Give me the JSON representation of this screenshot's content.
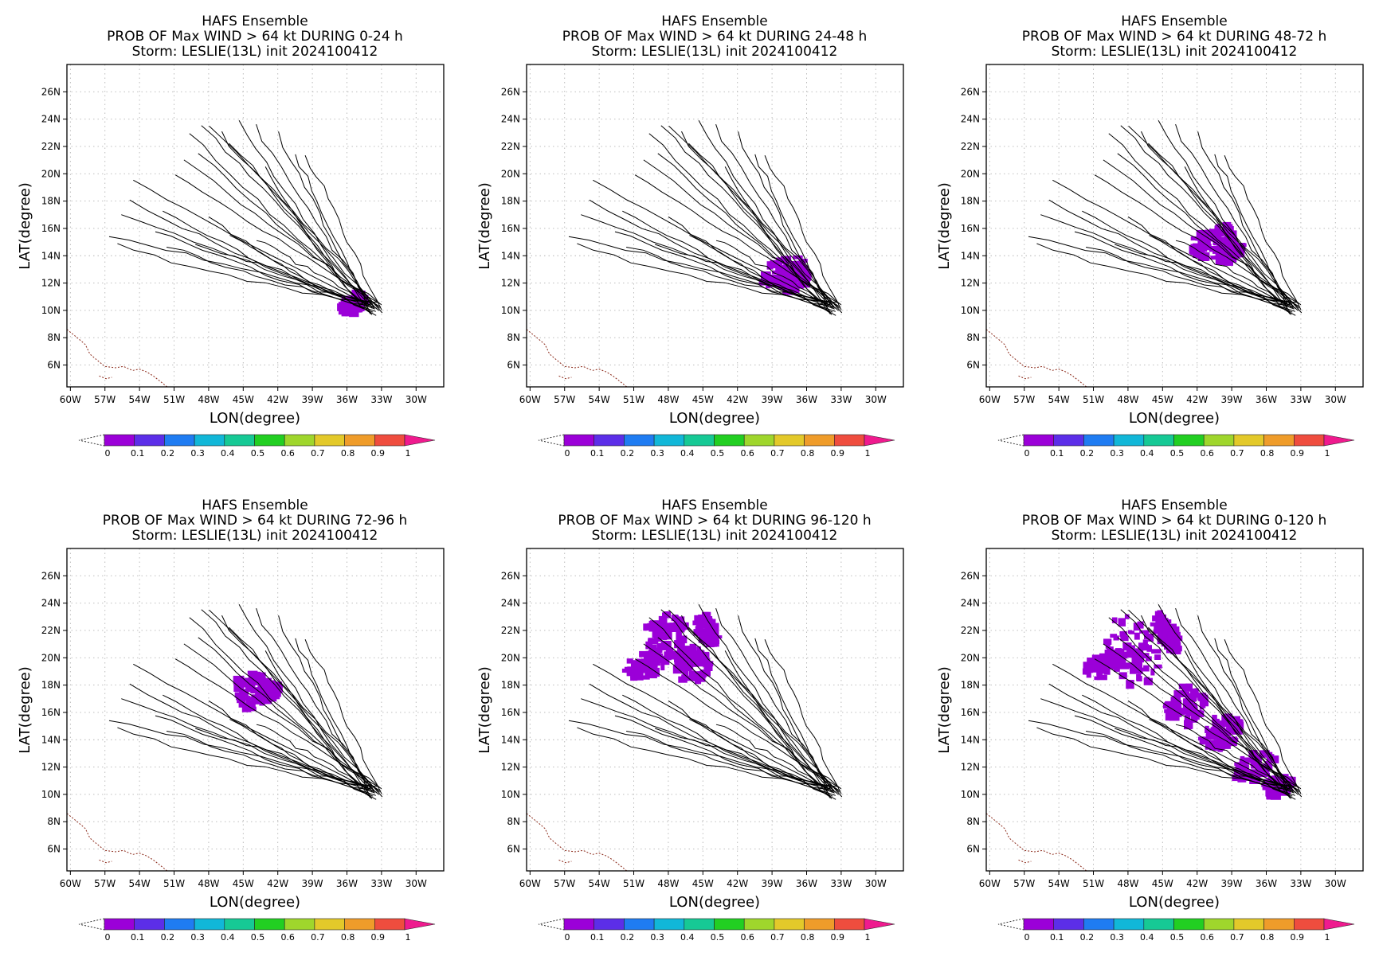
{
  "panels": [
    {
      "title1": "HAFS Ensemble",
      "title2": "PROB OF Max WIND > 64 kt DURING  0-24 h",
      "title3": "Storm: LESLIE(13L) init 2024100412",
      "regions": [
        [
          -35.5,
          10.5,
          1.2,
          0.7
        ]
      ]
    },
    {
      "title1": "HAFS Ensemble",
      "title2": "PROB OF Max WIND > 64 kt DURING 24-48 h",
      "title3": "Storm: LESLIE(13L) init 2024100412",
      "regions": [
        [
          -38.0,
          12.8,
          2.2,
          0.9
        ],
        [
          -37.2,
          12.2,
          1.5,
          0.7
        ]
      ]
    },
    {
      "title1": "HAFS Ensemble",
      "title2": "PROB OF Max WIND > 64 kt DURING 48-72 h",
      "title3": "Storm: LESLIE(13L) init 2024100412",
      "regions": [
        [
          -40.6,
          15.0,
          2.2,
          0.9
        ],
        [
          -39.2,
          14.3,
          1.4,
          0.6
        ]
      ]
    },
    {
      "title1": "HAFS Ensemble",
      "title2": "PROB OF Max WIND > 64 kt DURING 72-96 h",
      "title3": "Storm: LESLIE(13L) init 2024100412",
      "regions": [
        [
          -44.3,
          17.6,
          1.8,
          1.2
        ],
        [
          -42.8,
          17.5,
          1.0,
          0.5
        ]
      ]
    },
    {
      "title1": "HAFS Ensemble",
      "title2": "PROB OF Max WIND > 64 kt DURING 96-120 h",
      "title3": "Storm: LESLIE(13L) init 2024100412",
      "regions": [
        [
          -48.2,
          21.5,
          2.0,
          1.6
        ],
        [
          -50.0,
          19.5,
          2.0,
          0.8
        ],
        [
          -44.6,
          22.0,
          0.8,
          1.3
        ],
        [
          -46.0,
          19.5,
          1.6,
          1.2
        ]
      ]
    },
    {
      "title1": "HAFS Ensemble",
      "title2": "PROB OF Max WIND > 64 kt DURING 0-120 h",
      "title3": "Storm: LESLIE(13L) init 2024100412",
      "regions": [
        [
          -47.8,
          20.5,
          2.3,
          2.5
        ],
        [
          -50.0,
          19.5,
          2.0,
          0.8
        ],
        [
          -44.6,
          21.8,
          0.8,
          1.4
        ],
        [
          -43.0,
          16.5,
          1.8,
          1.3
        ],
        [
          -40.0,
          14.5,
          2.0,
          1.0
        ],
        [
          -37.0,
          12.0,
          2.0,
          0.9
        ],
        [
          -35.0,
          10.6,
          1.4,
          0.6
        ]
      ]
    }
  ],
  "axes": {
    "xlabel": "LON(degree)",
    "ylabel": "LAT(degree)",
    "xticks": [
      "60W",
      "57W",
      "54W",
      "51W",
      "48W",
      "45W",
      "42W",
      "39W",
      "36W",
      "33W",
      "30W"
    ],
    "yticks": [
      "6N",
      "8N",
      "10N",
      "12N",
      "14N",
      "16N",
      "18N",
      "20N",
      "22N",
      "24N",
      "26N"
    ]
  },
  "colorbar": {
    "labels": [
      "0",
      "0.1",
      "0.2",
      "0.3",
      "0.4",
      "0.5",
      "0.6",
      "0.7",
      "0.8",
      "0.9",
      "1"
    ],
    "colors": [
      "#9b00d8",
      "#5c2ee8",
      "#1f7cf2",
      "#11b7d8",
      "#16c995",
      "#22cf22",
      "#9fd62c",
      "#e3c92a",
      "#ef9c2a",
      "#ef4d3e"
    ],
    "over_color": "#ef1a8e"
  },
  "chart_data": {
    "type": "map",
    "storm": "LESLIE(13L)",
    "init": "2024100412",
    "xlim": [
      -60.3,
      -27.6
    ],
    "ylim": [
      4.4,
      28.0
    ],
    "track_start": [
      -33.5,
      10.2
    ],
    "track_ends": [
      [
        -56.5,
        15.5
      ],
      [
        -56,
        14.8
      ],
      [
        -55.5,
        17
      ],
      [
        -55,
        18
      ],
      [
        -54.5,
        19.5
      ],
      [
        -52.5,
        15.8
      ],
      [
        -52,
        17.3
      ],
      [
        -51,
        20
      ],
      [
        -50,
        21
      ],
      [
        -49.5,
        23
      ],
      [
        -48.8,
        21.5
      ],
      [
        -48.5,
        23.5
      ],
      [
        -47.8,
        23.6
      ],
      [
        -47,
        23
      ],
      [
        -46.2,
        22.2
      ],
      [
        -45.5,
        24
      ],
      [
        -44,
        23.5
      ],
      [
        -42,
        23
      ],
      [
        -40.5,
        21.5
      ],
      [
        -51.5,
        14.7
      ],
      [
        -48,
        16.8
      ],
      [
        -49,
        14.8
      ],
      [
        -46,
        15.6
      ],
      [
        -44,
        15.2
      ],
      [
        -39.5,
        21.3
      ],
      [
        -43.2,
        20.5
      ]
    ],
    "colorbar_values": [
      0,
      0.1,
      0.2,
      0.3,
      0.4,
      0.5,
      0.6,
      0.7,
      0.8,
      0.9,
      1
    ]
  }
}
